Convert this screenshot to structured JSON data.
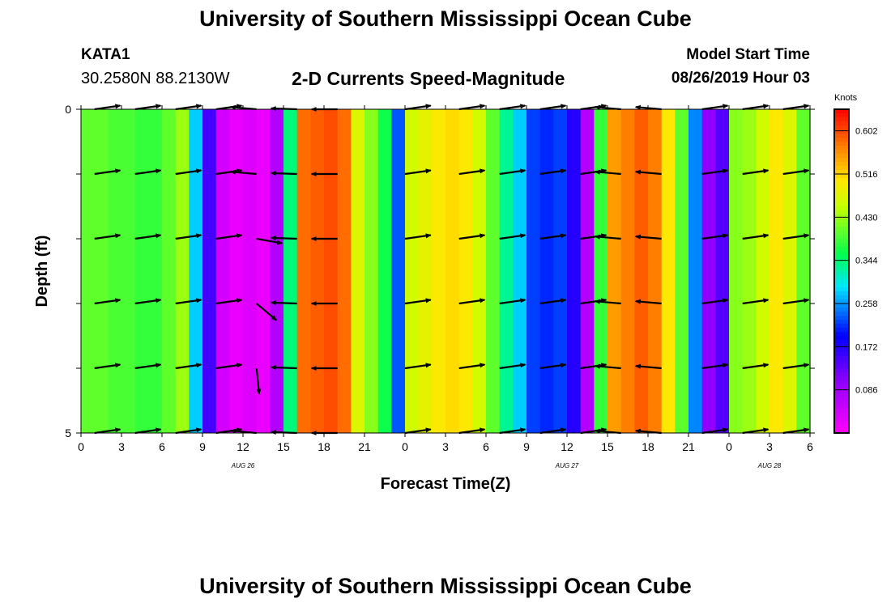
{
  "page": {
    "header_title": "University of Southern Mississippi Ocean Cube",
    "footer_title": "University of Southern Mississippi Ocean Cube",
    "station": "KATA1",
    "coordinates": "30.2580N 88.2130W",
    "plot_title": "2-D Currents Speed-Magnitude",
    "model_start_label": "Model Start Time",
    "model_start_value": "08/26/2019 Hour 03"
  },
  "chart_data": {
    "type": "heatmap",
    "title": "2-D Currents Speed-Magnitude",
    "xlabel": "Forecast Time(Z)",
    "ylabel": "Depth (ft)",
    "xlim": [
      0,
      54
    ],
    "ylim": [
      0,
      5
    ],
    "x_tick_labels": [
      "0",
      "3",
      "6",
      "9",
      "12",
      "15",
      "18",
      "21",
      "0",
      "3",
      "6",
      "9",
      "12",
      "15",
      "18",
      "21",
      "0",
      "3",
      "6"
    ],
    "y_tick_labels": [
      "0",
      "5"
    ],
    "date_labels": [
      {
        "text": "AUG 26",
        "hour": 12
      },
      {
        "text": "AUG 27",
        "hour": 36
      },
      {
        "text": "AUG 28",
        "hour": 51
      }
    ],
    "colorbar": {
      "units": "Knots",
      "min": 0,
      "max": 0.645,
      "tick_values": [
        0.602,
        0.516,
        0.43,
        0.344,
        0.258,
        0.172,
        0.086
      ],
      "tick_labels": [
        "0.602",
        "0.516",
        "0.430",
        "0.344",
        "0.258",
        "0.172",
        "0.086"
      ]
    },
    "speed_by_hour": [
      0.4,
      0.4,
      0.39,
      0.39,
      0.38,
      0.38,
      0.4,
      0.43,
      0.28,
      0.15,
      0.04,
      0.02,
      0.03,
      0.02,
      0.07,
      0.34,
      0.58,
      0.59,
      0.6,
      0.58,
      0.47,
      0.42,
      0.36,
      0.23,
      0.46,
      0.48,
      0.5,
      0.51,
      0.5,
      0.46,
      0.4,
      0.33,
      0.28,
      0.22,
      0.21,
      0.22,
      0.17,
      0.07,
      0.38,
      0.55,
      0.57,
      0.59,
      0.57,
      0.5,
      0.4,
      0.25,
      0.1,
      0.14,
      0.42,
      0.43,
      0.46,
      0.5,
      0.47,
      0.4
    ],
    "vector_hours": [
      1,
      4,
      7,
      10,
      13,
      16,
      19,
      24,
      28,
      31,
      34,
      37,
      40,
      43,
      46,
      49,
      52
    ],
    "vector_depths": [
      0.0,
      1.0,
      2.0,
      3.0,
      4.0,
      5.0
    ],
    "vector_angles_by_hour": [
      -8,
      -8,
      -8,
      -8,
      185,
      182,
      180,
      -8,
      -8,
      -8,
      -8,
      -8,
      185,
      185,
      -8,
      -8,
      -8
    ],
    "anomalies": [
      {
        "hour": 13,
        "depth": 3.0,
        "angle": 40
      },
      {
        "hour": 13,
        "depth": 4.0,
        "angle": 84
      },
      {
        "hour": 13,
        "depth": 2.0,
        "angle": 10
      }
    ]
  }
}
